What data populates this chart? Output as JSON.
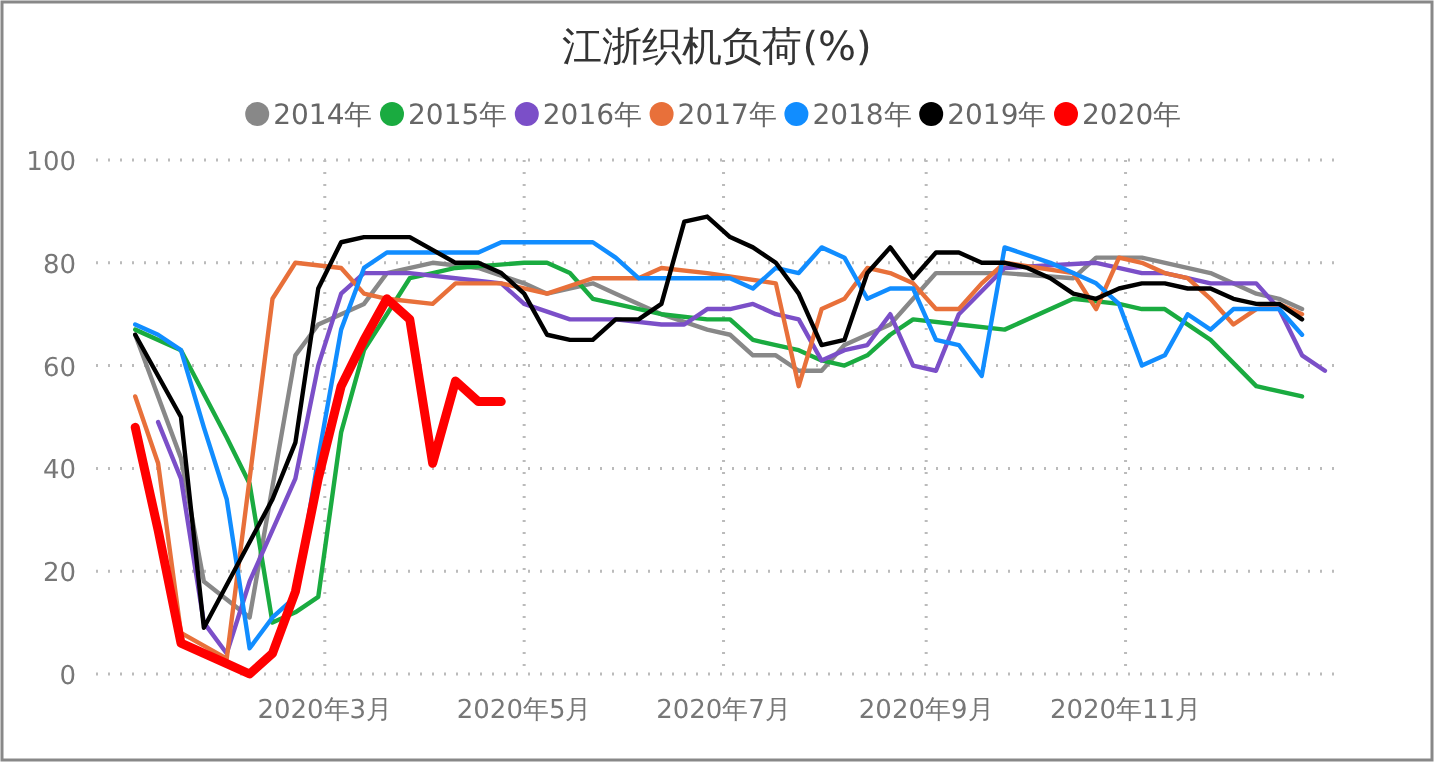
{
  "chart_data": {
    "type": "line",
    "title": "江浙织机负荷(%)",
    "legend": "top",
    "grid": true,
    "line_style": "solid",
    "marker": "none",
    "xlim": [
      "2019-12-22",
      "2021-01-05"
    ],
    "ylim": [
      0,
      100
    ],
    "yticks": [
      0,
      20,
      40,
      60,
      80,
      100
    ],
    "xticks": [
      {
        "value": "2020-03-01",
        "label": "2020年3月"
      },
      {
        "value": "2020-05-01",
        "label": "2020年5月"
      },
      {
        "value": "2020-07-01",
        "label": "2020年7月"
      },
      {
        "value": "2020-09-01",
        "label": "2020年9月"
      },
      {
        "value": "2020-11-01",
        "label": "2020年11月"
      }
    ],
    "series": [
      {
        "name": "2014年",
        "color": "#888888",
        "x": [
          "2020-01-03",
          "2020-01-17",
          "2020-01-24",
          "2020-02-07",
          "2020-02-21",
          "2020-02-28",
          "2020-03-13",
          "2020-03-20",
          "2020-04-03",
          "2020-04-17",
          "2020-05-01",
          "2020-05-08",
          "2020-05-22",
          "2020-05-29",
          "2020-06-12",
          "2020-06-26",
          "2020-07-03",
          "2020-07-10",
          "2020-07-17",
          "2020-07-24",
          "2020-07-31",
          "2020-08-07",
          "2020-08-21",
          "2020-08-28",
          "2020-09-04",
          "2020-09-25",
          "2020-10-16",
          "2020-10-23",
          "2020-11-06",
          "2020-11-27",
          "2020-12-11",
          "2020-12-18",
          "2020-12-25"
        ],
        "values": [
          66,
          42,
          18,
          11,
          62,
          68,
          72,
          78,
          80,
          79,
          76,
          74,
          76,
          74,
          70,
          67,
          66,
          62,
          62,
          59,
          59,
          64,
          68,
          73,
          78,
          78,
          77,
          81,
          81,
          78,
          74,
          73,
          71
        ]
      },
      {
        "name": "2015年",
        "color": "#1aab40",
        "x": [
          "2020-01-03",
          "2020-01-17",
          "2020-01-31",
          "2020-02-07",
          "2020-02-14",
          "2020-02-21",
          "2020-02-28",
          "2020-03-06",
          "2020-03-13",
          "2020-03-20",
          "2020-03-27",
          "2020-04-03",
          "2020-04-10",
          "2020-05-01",
          "2020-05-08",
          "2020-05-15",
          "2020-05-22",
          "2020-05-29",
          "2020-06-12",
          "2020-06-26",
          "2020-07-03",
          "2020-07-10",
          "2020-07-17",
          "2020-07-24",
          "2020-07-31",
          "2020-08-07",
          "2020-08-14",
          "2020-08-21",
          "2020-08-28",
          "2020-09-11",
          "2020-09-25",
          "2020-10-16",
          "2020-10-30",
          "2020-11-06",
          "2020-11-13",
          "2020-11-27",
          "2020-12-11",
          "2020-12-25"
        ],
        "values": [
          67,
          63,
          46,
          37,
          10,
          12,
          15,
          47,
          63,
          70,
          77,
          78,
          79,
          80,
          80,
          78,
          73,
          72,
          70,
          69,
          69,
          65,
          64,
          63,
          61,
          60,
          62,
          66,
          69,
          68,
          67,
          73,
          72,
          71,
          71,
          65,
          56,
          54
        ]
      },
      {
        "name": "2016年",
        "color": "#7b4fc8",
        "x": [
          "2020-01-10",
          "2020-01-17",
          "2020-01-24",
          "2020-01-31",
          "2020-02-07",
          "2020-02-21",
          "2020-02-28",
          "2020-03-06",
          "2020-03-13",
          "2020-03-27",
          "2020-04-10",
          "2020-04-24",
          "2020-05-01",
          "2020-05-15",
          "2020-05-29",
          "2020-06-12",
          "2020-06-19",
          "2020-06-26",
          "2020-07-03",
          "2020-07-10",
          "2020-07-17",
          "2020-07-24",
          "2020-07-31",
          "2020-08-07",
          "2020-08-14",
          "2020-08-21",
          "2020-08-28",
          "2020-09-04",
          "2020-09-11",
          "2020-09-25",
          "2020-10-23",
          "2020-11-06",
          "2020-11-13",
          "2020-11-20",
          "2020-11-27",
          "2020-12-11",
          "2020-12-18",
          "2020-12-25",
          "2021-01-01"
        ],
        "values": [
          49,
          38,
          10,
          4,
          18,
          38,
          60,
          74,
          78,
          78,
          77,
          76,
          72,
          69,
          69,
          68,
          68,
          71,
          71,
          72,
          70,
          69,
          61,
          63,
          64,
          70,
          60,
          59,
          70,
          79,
          80,
          78,
          78,
          77,
          76,
          76,
          71,
          62,
          59
        ]
      },
      {
        "name": "2017年",
        "color": "#e8703a",
        "x": [
          "2020-01-03",
          "2020-01-10",
          "2020-01-17",
          "2020-01-31",
          "2020-02-14",
          "2020-02-21",
          "2020-03-06",
          "2020-03-13",
          "2020-03-20",
          "2020-04-03",
          "2020-04-10",
          "2020-04-24",
          "2020-05-08",
          "2020-05-22",
          "2020-06-05",
          "2020-06-12",
          "2020-06-26",
          "2020-07-17",
          "2020-07-24",
          "2020-07-31",
          "2020-08-07",
          "2020-08-14",
          "2020-08-21",
          "2020-08-28",
          "2020-09-04",
          "2020-09-11",
          "2020-09-18",
          "2020-09-25",
          "2020-10-16",
          "2020-10-23",
          "2020-10-30",
          "2020-11-06",
          "2020-11-13",
          "2020-11-20",
          "2020-11-27",
          "2020-12-04",
          "2020-12-11",
          "2020-12-18",
          "2020-12-25"
        ],
        "values": [
          54,
          41,
          8,
          3,
          73,
          80,
          79,
          74,
          73,
          72,
          76,
          76,
          74,
          77,
          77,
          79,
          78,
          76,
          56,
          71,
          73,
          79,
          78,
          76,
          71,
          71,
          76,
          80,
          78,
          71,
          81,
          80,
          78,
          77,
          73,
          68,
          71,
          72,
          70
        ]
      },
      {
        "name": "2018年",
        "color": "#118dff",
        "x": [
          "2020-01-03",
          "2020-01-10",
          "2020-01-17",
          "2020-01-24",
          "2020-01-31",
          "2020-02-07",
          "2020-02-14",
          "2020-02-21",
          "2020-02-28",
          "2020-03-06",
          "2020-03-13",
          "2020-03-20",
          "2020-04-17",
          "2020-04-24",
          "2020-05-22",
          "2020-05-29",
          "2020-06-05",
          "2020-07-03",
          "2020-07-10",
          "2020-07-17",
          "2020-07-24",
          "2020-07-31",
          "2020-08-07",
          "2020-08-14",
          "2020-08-21",
          "2020-08-28",
          "2020-09-04",
          "2020-09-11",
          "2020-09-18",
          "2020-09-25",
          "2020-10-09",
          "2020-10-16",
          "2020-10-23",
          "2020-10-30",
          "2020-11-06",
          "2020-11-13",
          "2020-11-20",
          "2020-11-27",
          "2020-12-04",
          "2020-12-18",
          "2020-12-25"
        ],
        "values": [
          68,
          66,
          63,
          48,
          34,
          5,
          11,
          15,
          42,
          67,
          79,
          82,
          82,
          84,
          84,
          81,
          77,
          77,
          75,
          79,
          78,
          83,
          81,
          73,
          75,
          75,
          65,
          64,
          58,
          83,
          80,
          78,
          76,
          72,
          60,
          62,
          70,
          67,
          71,
          71,
          66
        ]
      },
      {
        "name": "2019年",
        "color": "#000000",
        "x": [
          "2020-01-03",
          "2020-01-17",
          "2020-01-24",
          "2020-02-14",
          "2020-02-21",
          "2020-02-28",
          "2020-03-06",
          "2020-03-13",
          "2020-03-27",
          "2020-04-10",
          "2020-04-17",
          "2020-04-24",
          "2020-05-01",
          "2020-05-08",
          "2020-05-15",
          "2020-05-22",
          "2020-05-29",
          "2020-06-05",
          "2020-06-12",
          "2020-06-19",
          "2020-06-26",
          "2020-07-03",
          "2020-07-10",
          "2020-07-17",
          "2020-07-24",
          "2020-07-31",
          "2020-08-07",
          "2020-08-14",
          "2020-08-21",
          "2020-08-28",
          "2020-09-04",
          "2020-09-11",
          "2020-09-18",
          "2020-09-25",
          "2020-10-02",
          "2020-10-09",
          "2020-10-16",
          "2020-10-23",
          "2020-10-30",
          "2020-11-06",
          "2020-11-13",
          "2020-11-20",
          "2020-11-27",
          "2020-12-04",
          "2020-12-11",
          "2020-12-18",
          "2020-12-25"
        ],
        "values": [
          66,
          50,
          9,
          34,
          45,
          75,
          84,
          85,
          85,
          80,
          80,
          78,
          74,
          66,
          65,
          65,
          69,
          69,
          72,
          88,
          89,
          85,
          83,
          80,
          74,
          64,
          65,
          78,
          83,
          77,
          82,
          82,
          80,
          80,
          79,
          77,
          74,
          73,
          75,
          76,
          76,
          75,
          75,
          73,
          72,
          72,
          69
        ]
      },
      {
        "name": "2020年",
        "color": "#ff0000",
        "x": [
          "2020-01-03",
          "2020-01-10",
          "2020-01-17",
          "2020-01-24",
          "2020-01-31",
          "2020-02-07",
          "2020-02-14",
          "2020-02-21",
          "2020-02-28",
          "2020-03-06",
          "2020-03-13",
          "2020-03-20",
          "2020-03-27",
          "2020-04-03",
          "2020-04-10",
          "2020-04-17",
          "2020-04-24"
        ],
        "values": [
          48,
          28,
          6,
          4,
          2,
          0,
          4,
          16,
          38,
          56,
          65,
          73,
          69,
          41,
          57,
          53,
          53
        ]
      }
    ]
  }
}
